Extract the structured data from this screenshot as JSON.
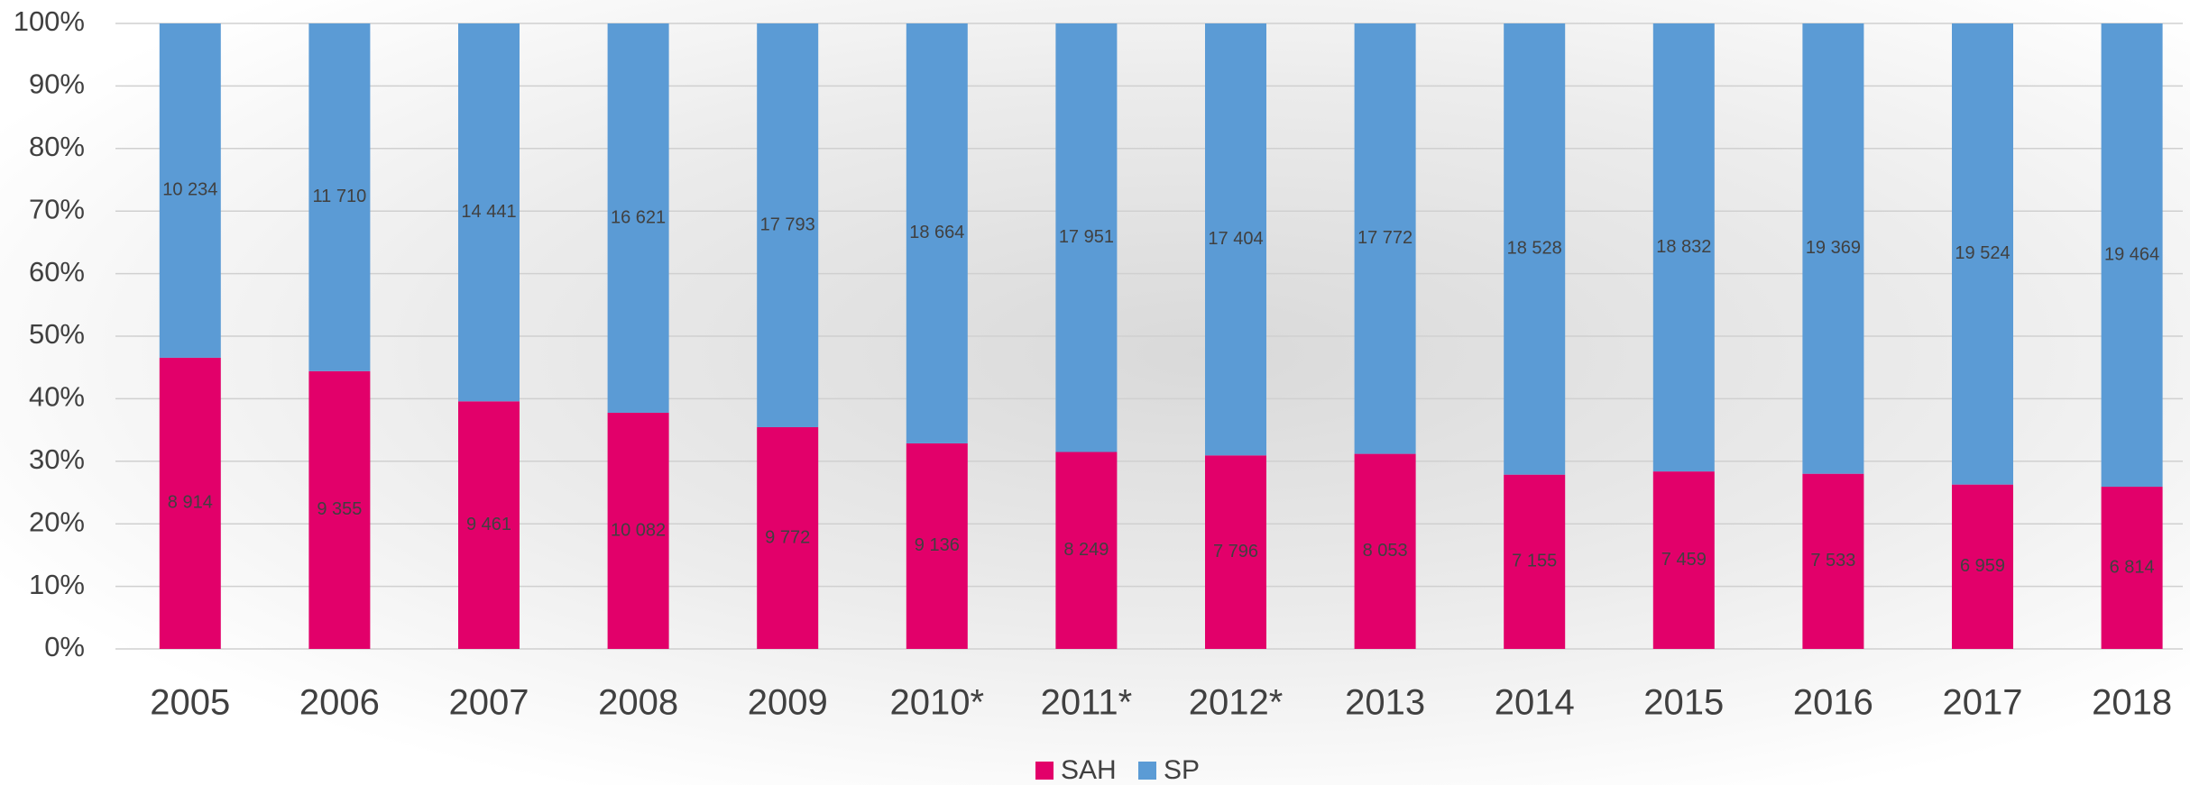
{
  "chart_data": {
    "type": "bar",
    "stacking": "percent",
    "categories": [
      "2005",
      "2006",
      "2007",
      "2008",
      "2009",
      "2010*",
      "2011*",
      "2012*",
      "2013",
      "2014",
      "2015",
      "2016",
      "2017",
      "2018"
    ],
    "series": [
      {
        "name": "SAH",
        "color": "#e2006a",
        "values": [
          8914,
          9355,
          9461,
          10082,
          9772,
          9136,
          8249,
          7796,
          8053,
          7155,
          7459,
          7533,
          6959,
          6814
        ],
        "value_labels": [
          "8 914",
          "9 355",
          "9 461",
          "10 082",
          "9 772",
          "9 136",
          "8 249",
          "7 796",
          "8 053",
          "7 155",
          "7 459",
          "7 533",
          "6 959",
          "6 814"
        ]
      },
      {
        "name": "SP",
        "color": "#5b9bd5",
        "values": [
          10234,
          11710,
          14441,
          16621,
          17793,
          18664,
          17951,
          17404,
          17772,
          18528,
          18832,
          19369,
          19524,
          19464
        ],
        "value_labels": [
          "10 234",
          "11 710",
          "14 441",
          "16 621",
          "17 793",
          "18 664",
          "17 951",
          "17 404",
          "17 772",
          "18 528",
          "18 832",
          "19 369",
          "19 524",
          "19 464"
        ]
      }
    ],
    "ylim": [
      0,
      100
    ],
    "yticks": [
      {
        "value": 0,
        "label": "0%"
      },
      {
        "value": 10,
        "label": "10%"
      },
      {
        "value": 20,
        "label": "20%"
      },
      {
        "value": 30,
        "label": "30%"
      },
      {
        "value": 40,
        "label": "40%"
      },
      {
        "value": 50,
        "label": "50%"
      },
      {
        "value": 60,
        "label": "60%"
      },
      {
        "value": 70,
        "label": "70%"
      },
      {
        "value": 80,
        "label": "80%"
      },
      {
        "value": 90,
        "label": "90%"
      },
      {
        "value": 100,
        "label": "100%"
      }
    ],
    "grid": true,
    "legend": "bottom"
  }
}
